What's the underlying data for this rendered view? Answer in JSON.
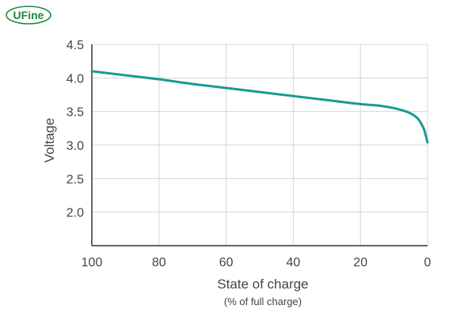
{
  "brand": {
    "name": "UFine",
    "color": "#1e8a3c"
  },
  "chart_data": {
    "type": "line",
    "title": "",
    "xlabel": "State of charge",
    "xlabel_sub": "(% of full charge)",
    "ylabel": "Voltage",
    "xlim": [
      100,
      0
    ],
    "ylim": [
      1.5,
      4.5
    ],
    "x_ticks": [
      100,
      80,
      60,
      40,
      20,
      0
    ],
    "x_tick_labels": [
      "100",
      "80",
      "60",
      "40",
      "20",
      "0"
    ],
    "y_ticks": [
      2.0,
      2.5,
      3.0,
      3.5,
      4.0,
      4.5
    ],
    "y_tick_labels": [
      "2.0",
      "2.5",
      "3.0",
      "3.5",
      "4.0",
      "4.5"
    ],
    "grid": true,
    "legend": "none",
    "series": [
      {
        "color": "#1a9a94",
        "x": [
          100,
          90,
          80,
          70,
          60,
          50,
          40,
          30,
          20,
          15,
          10,
          7,
          5,
          3,
          2,
          1,
          0.5,
          0
        ],
        "y": [
          4.1,
          4.04,
          3.98,
          3.91,
          3.85,
          3.79,
          3.73,
          3.67,
          3.61,
          3.59,
          3.55,
          3.51,
          3.47,
          3.4,
          3.33,
          3.23,
          3.14,
          3.04
        ]
      }
    ]
  }
}
